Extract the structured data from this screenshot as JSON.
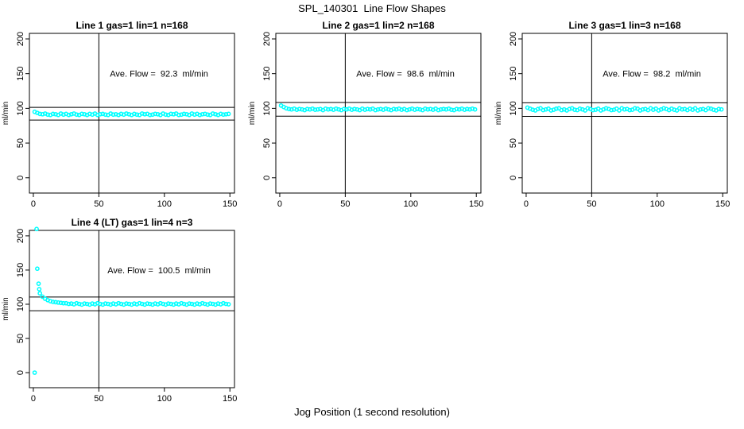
{
  "figure": {
    "title": "SPL_140301  Line Flow Shapes",
    "xlabel": "Jog Position (1 second resolution)",
    "background": "#ffffff",
    "point_color": "#00ffff",
    "line_color": "#000000"
  },
  "chart_data": [
    {
      "type": "scatter",
      "title": "Line 1 gas=1 lin=1 n=168",
      "n": 168,
      "annotation": "Ave. Flow =  92.3  ml/min",
      "ave_flow": 92.3,
      "ylabel": "ml/min",
      "x_ticks": [
        0,
        50,
        100,
        150
      ],
      "y_ticks": [
        0,
        50,
        100,
        150,
        200
      ],
      "xlim": [
        -3,
        153.5
      ],
      "ylim": [
        -22,
        208
      ],
      "ref_h": [
        101.5,
        83.1
      ],
      "ref_v": [
        50
      ],
      "grid": false,
      "x_start": 1,
      "x_step": 2,
      "values": [
        95,
        93.5,
        92,
        91.5,
        92.5,
        91,
        90.5,
        92,
        91.5,
        90.5,
        92.5,
        91,
        92,
        90.5,
        91.5,
        92.5,
        91,
        90.5,
        92,
        91.5,
        90.5,
        92,
        91,
        92.5,
        90.5,
        91.5,
        92,
        91,
        90.5,
        92.5,
        91,
        91.5,
        90.5,
        92,
        91,
        92.5,
        91.5,
        90.5,
        92,
        91,
        90.5,
        92.5,
        91.5,
        92,
        90.5,
        91,
        92,
        91.5,
        90.5,
        92.5,
        91,
        90.5,
        92,
        91.5,
        92.5,
        90.5,
        91,
        92,
        91.5,
        90.5,
        92.5,
        91,
        92,
        90.5,
        91.5,
        92,
        91,
        90.5,
        92.5,
        91.5,
        90.5,
        92,
        91,
        91.5,
        92
      ],
      "extra_points": []
    },
    {
      "type": "scatter",
      "title": "Line 2 gas=1 lin=2 n=168",
      "n": 168,
      "annotation": "Ave. Flow =  98.6  ml/min",
      "ave_flow": 98.6,
      "ylabel": "ml/min",
      "x_ticks": [
        0,
        50,
        100,
        150
      ],
      "y_ticks": [
        0,
        50,
        100,
        150,
        200
      ],
      "xlim": [
        -3,
        153.5
      ],
      "ylim": [
        -22,
        208
      ],
      "ref_h": [
        108.5,
        88.7
      ],
      "ref_v": [
        50
      ],
      "grid": false,
      "x_start": 1,
      "x_step": 2,
      "values": [
        104,
        102,
        100,
        99,
        98.5,
        99.5,
        98,
        99,
        98.5,
        97.5,
        99,
        98.5,
        99.5,
        98,
        98.5,
        99,
        97.5,
        99.5,
        98.5,
        99,
        98,
        99.5,
        98.5,
        97.5,
        99,
        98.5,
        99.5,
        98,
        99,
        98.5,
        97.5,
        99.5,
        98,
        99,
        98.5,
        99.5,
        97.5,
        98.5,
        99,
        98,
        99.5,
        98.5,
        97.5,
        99,
        98.5,
        99.5,
        98,
        99,
        97.5,
        98.5,
        99.5,
        98,
        99,
        98.5,
        97.5,
        99.5,
        98.5,
        99,
        98,
        99.5,
        97.5,
        98.5,
        99,
        98.5,
        99.5,
        98,
        97.5,
        99,
        98.5,
        99.5,
        98,
        99,
        98.5,
        99.5,
        98.5
      ],
      "extra_points": []
    },
    {
      "type": "scatter",
      "title": "Line 3 gas=1 lin=3 n=168",
      "n": 168,
      "annotation": "Ave. Flow =  98.2  ml/min",
      "ave_flow": 98.2,
      "ylabel": "ml/min",
      "x_ticks": [
        0,
        50,
        100,
        150
      ],
      "y_ticks": [
        0,
        50,
        100,
        150,
        200
      ],
      "xlim": [
        -3,
        153.5
      ],
      "ylim": [
        -22,
        208
      ],
      "ref_h": [
        108.0,
        88.4
      ],
      "ref_v": [
        50
      ],
      "grid": false,
      "x_start": 1,
      "x_step": 2,
      "values": [
        101,
        99.5,
        98,
        97,
        99,
        100,
        97.5,
        98.5,
        99.5,
        97,
        98,
        99.5,
        100,
        97.5,
        98.5,
        97,
        99,
        100,
        98,
        97.5,
        99.5,
        98.5,
        97,
        100,
        99,
        97.5,
        98,
        99.5,
        97,
        98.5,
        100,
        99,
        97.5,
        98,
        99.5,
        97,
        100,
        98.5,
        99,
        97.5,
        98,
        100,
        99.5,
        97,
        98.5,
        99,
        97.5,
        100,
        98,
        99.5,
        97,
        98.5,
        100,
        99,
        97.5,
        99.5,
        98,
        97,
        100,
        98.5,
        99,
        97.5,
        99.5,
        98,
        100,
        97,
        98.5,
        99,
        97.5,
        100,
        99.5,
        98,
        97,
        99,
        98.5
      ],
      "extra_points": []
    },
    {
      "type": "scatter",
      "title": "Line 4 (LT) gas=1 lin=4 n=3",
      "n": 3,
      "annotation": "Ave. Flow =  100.5  ml/min",
      "ave_flow": 100.5,
      "ylabel": "ml/min",
      "x_ticks": [
        0,
        50,
        100,
        150
      ],
      "y_ticks": [
        0,
        50,
        100,
        150,
        200
      ],
      "xlim": [
        -3,
        153.5
      ],
      "ylim": [
        -22,
        208
      ],
      "ref_h": [
        110.6,
        90.5
      ],
      "ref_v": [
        50
      ],
      "grid": false,
      "x_start": 5,
      "x_step": 2,
      "values": [
        116,
        111,
        108,
        106,
        104.5,
        103.5,
        103,
        102.5,
        102,
        101.5,
        101.5,
        100.5,
        101,
        100,
        101.5,
        100.5,
        99.5,
        101,
        100.5,
        99.5,
        101,
        100,
        101.5,
        100.5,
        99.5,
        101,
        100.5,
        99.5,
        101,
        100,
        101.5,
        100.5,
        99.5,
        101,
        100.5,
        99.5,
        101,
        100,
        101.5,
        100.5,
        99.5,
        101,
        100.5,
        99.5,
        101,
        100,
        101.5,
        100.5,
        99.5,
        101,
        100.5,
        99.5,
        101,
        100,
        101.5,
        100.5,
        99.5,
        101,
        100.5,
        99.5,
        101,
        100,
        101.5,
        100.5,
        99.5,
        101,
        100.5,
        99.5,
        101,
        100,
        101.5,
        100.5,
        100
      ],
      "extra_points": [
        [
          1,
          0
        ],
        [
          2.5,
          210
        ],
        [
          3,
          152
        ],
        [
          4,
          130
        ],
        [
          4.5,
          122
        ]
      ]
    }
  ]
}
